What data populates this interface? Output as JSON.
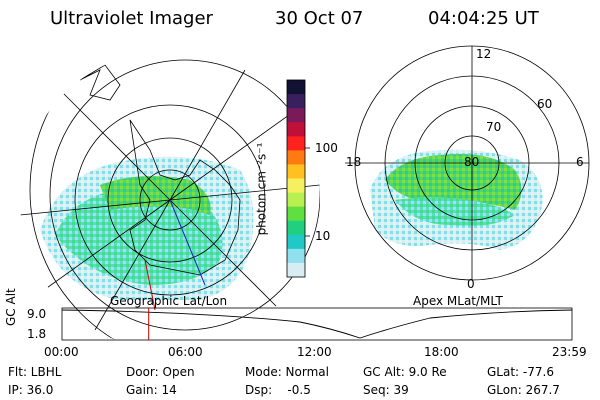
{
  "header": {
    "instrument": "Ultraviolet Imager",
    "date": "30 Oct 07",
    "time": "04:04:25 UT"
  },
  "left_panel": {
    "label": "Geographic Lat/Lon"
  },
  "right_panel": {
    "label": "Apex MLat/MLT",
    "lat_rings": [
      "80",
      "70",
      "60"
    ],
    "mlt_labels": [
      "12",
      "6",
      "0",
      "18"
    ]
  },
  "colorbar": {
    "unit_label": "photon cm⁻²s⁻¹",
    "ticks": [
      "100",
      "10"
    ],
    "colors": [
      "#111133",
      "#3a1f5e",
      "#7a1a5a",
      "#c0103a",
      "#ff2020",
      "#ff7a10",
      "#ffc020",
      "#f4f060",
      "#b8f050",
      "#60e040",
      "#20d080",
      "#20c8c8",
      "#90e0f0",
      "#d8ecf4"
    ]
  },
  "altitude_plot": {
    "y_axis_label": "GC Alt",
    "y_ticks": [
      "9.0",
      "1.8"
    ],
    "x_ticks": [
      "00:00",
      "06:00",
      "12:00",
      "18:00",
      "23:59"
    ],
    "current_time_fraction": 0.17,
    "marker_color": "#cc0000"
  },
  "footer": {
    "row1": {
      "filter": "Flt: LBHL",
      "door": "Door: Open",
      "mode": "Mode: Normal",
      "gc_alt": "GC Alt: 9.0 Re",
      "glat": "GLat: -77.6"
    },
    "row2": {
      "ip": "IP: 36.0",
      "gain": "Gain: 14",
      "dsp": "Dsp:    -0.5",
      "seq": "Seq: 39",
      "glon": "GLon: 267.7"
    }
  }
}
